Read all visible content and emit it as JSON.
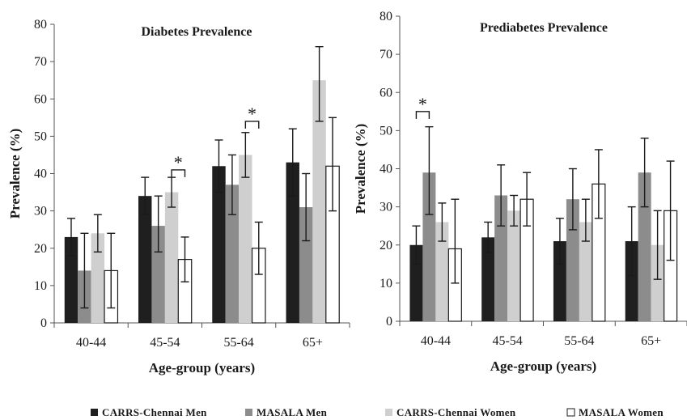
{
  "colors": {
    "CARRS-Chennai Men": "#1f1f1f",
    "MASALA Men": "#8c8c8c",
    "CARRS-Chennai Women": "#cfcfcf",
    "MASALA Women": "#ffffff",
    "axis": "#555555"
  },
  "legend": [
    {
      "label": "CARRS-Chennai Men",
      "color_key": "CARRS-Chennai Men"
    },
    {
      "label": "MASALA Men",
      "color_key": "MASALA Men"
    },
    {
      "label": "CARRS-Chennai Women",
      "color_key": "CARRS-Chennai Women"
    },
    {
      "label": "MASALA Women",
      "color_key": "MASALA Women"
    }
  ],
  "chart_data": [
    {
      "type": "bar",
      "title": "Diabetes Prevalence",
      "xlabel": "Age-group (years)",
      "ylabel": "Prevalence (%)",
      "ylim": [
        0,
        80
      ],
      "yticks": [
        "0",
        "10",
        "20",
        "30",
        "40",
        "50",
        "60",
        "70",
        "80"
      ],
      "categories": [
        "40-44",
        "45-54",
        "55-64",
        "65+"
      ],
      "series": [
        {
          "name": "CARRS-Chennai Men",
          "values": [
            23,
            34,
            42,
            43
          ],
          "err_low": [
            18,
            29,
            35,
            34
          ],
          "err_high": [
            28,
            39,
            49,
            52
          ]
        },
        {
          "name": "MASALA Men",
          "values": [
            14,
            26,
            37,
            31
          ],
          "err_low": [
            4,
            19,
            29,
            22
          ],
          "err_high": [
            24,
            34,
            45,
            40
          ]
        },
        {
          "name": "CARRS-Chennai Women",
          "values": [
            24,
            35,
            45,
            65
          ],
          "err_low": [
            19,
            31,
            39,
            54
          ],
          "err_high": [
            29,
            39,
            51,
            74
          ]
        },
        {
          "name": "MASALA Women",
          "values": [
            14,
            17,
            20,
            42
          ],
          "err_low": [
            4,
            11,
            13,
            30
          ],
          "err_high": [
            24,
            23,
            27,
            55
          ]
        }
      ],
      "annotations": [
        {
          "text": "*",
          "category_index": 1,
          "between": [
            2,
            3
          ],
          "bracket_y": 41
        },
        {
          "text": "*",
          "category_index": 2,
          "between": [
            2,
            3
          ],
          "bracket_y": 54
        }
      ]
    },
    {
      "type": "bar",
      "title": "Prediabetes Prevalence",
      "xlabel": "Age-group (years)",
      "ylabel": "Prevalence (%)",
      "ylim": [
        0,
        80
      ],
      "yticks": [
        "0",
        "10",
        "20",
        "30",
        "40",
        "50",
        "60",
        "70",
        "80"
      ],
      "categories": [
        "40-44",
        "45-54",
        "55-64",
        "65+"
      ],
      "series": [
        {
          "name": "CARRS-Chennai Men",
          "values": [
            20,
            22,
            21,
            21
          ],
          "err_low": [
            15,
            18,
            15,
            12
          ],
          "err_high": [
            25,
            26,
            27,
            30
          ]
        },
        {
          "name": "MASALA Men",
          "values": [
            39,
            33,
            32,
            39
          ],
          "err_low": [
            28,
            25,
            24,
            30
          ],
          "err_high": [
            51,
            41,
            40,
            48
          ]
        },
        {
          "name": "CARRS-Chennai Women",
          "values": [
            26,
            29,
            26,
            20
          ],
          "err_low": [
            21,
            25,
            21,
            11
          ],
          "err_high": [
            31,
            33,
            32,
            29
          ]
        },
        {
          "name": "MASALA Women",
          "values": [
            19,
            32,
            36,
            29
          ],
          "err_low": [
            10,
            25,
            27,
            16
          ],
          "err_high": [
            32,
            39,
            45,
            42
          ]
        }
      ],
      "annotations": [
        {
          "text": "*",
          "category_index": 0,
          "between": [
            0,
            1
          ],
          "bracket_y": 55
        }
      ]
    }
  ]
}
